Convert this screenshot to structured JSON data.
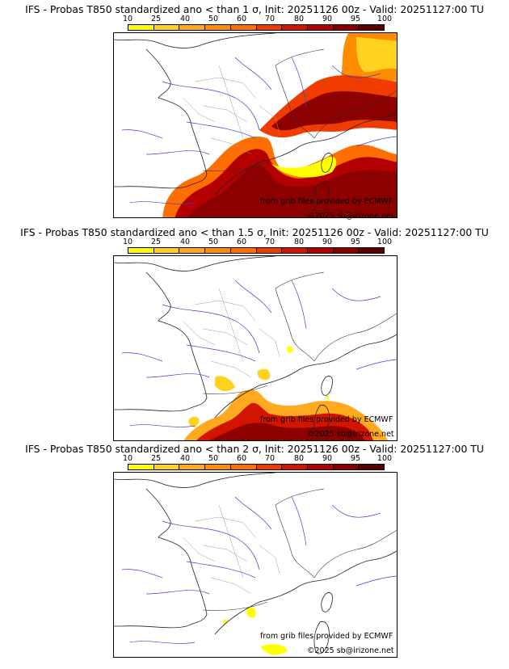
{
  "colorbar": {
    "labels": [
      "10",
      "25",
      "40",
      "50",
      "60",
      "70",
      "80",
      "90",
      "95",
      "100"
    ],
    "colors": [
      "#ffff00",
      "#ffd21e",
      "#ffaa1e",
      "#ff8c00",
      "#ff6e00",
      "#f03c00",
      "#d21400",
      "#b40000",
      "#8c0000",
      "#5a0000"
    ]
  },
  "panels": [
    {
      "title": "IFS - Probas T850  standardized ano < than 1 σ, Init: 20251126 00z - Valid: 20251127:00 TU",
      "credit_source": "from grib files provided by ECMWF",
      "credit_copyright": "©2025 sb@irizone.net"
    },
    {
      "title": "IFS - Probas T850  standardized ano < than 1.5 σ, Init: 20251126 00z - Valid: 20251127:00 TU",
      "credit_source": "from grib files provided by ECMWF",
      "credit_copyright": "©2025 sb@irizone.net"
    },
    {
      "title": "IFS - Probas T850  standardized ano < than 2 σ, Init: 20251126 00z - Valid: 20251127:00 TU",
      "credit_source": "from grib files provided by ECMWF",
      "credit_copyright": "©2025 sb@irizone.net"
    }
  ]
}
